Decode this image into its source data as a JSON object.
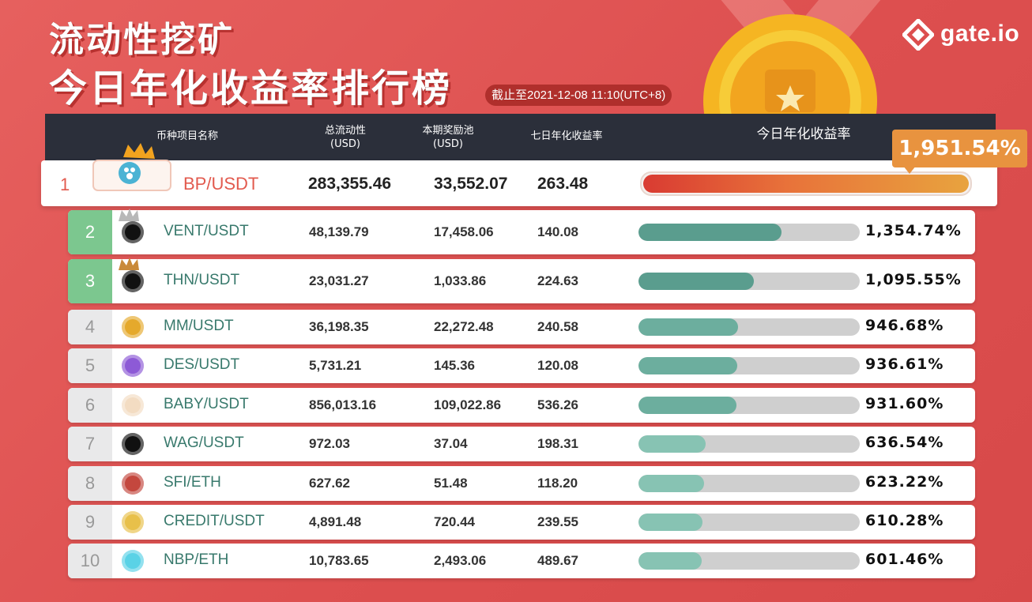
{
  "title_line1": "流动性挖矿",
  "title_line2": "今日年化收益率排行榜",
  "as_of": "截止至2021-12-08 11:10(UTC+8)",
  "brand": "gate.io",
  "headers": {
    "pair": "币种项目名称",
    "total_liquidity": "总流动性\n(USD)",
    "reward_pool": "本期奖励池\n(USD)",
    "apy_7d": "七日年化收益率",
    "apy_today": "今日年化收益率"
  },
  "colors": {
    "top_green": "#5a9d8e",
    "mid_green": "#6cae9e",
    "light_green": "#87c3b3",
    "top_bar": "#e8733a",
    "callout": "#e8933f"
  },
  "chart_data": {
    "type": "bar",
    "orientation": "horizontal",
    "title": "今日年化收益率排行榜",
    "categories": [
      "BP/USDT",
      "VENT/USDT",
      "THN/USDT",
      "MM/USDT",
      "DES/USDT",
      "BABY/USDT",
      "WAG/USDT",
      "SFI/ETH",
      "CREDIT/USDT",
      "NBP/ETH"
    ],
    "series": [
      {
        "name": "今日年化收益率",
        "values": [
          1951.54,
          1354.74,
          1095.55,
          946.68,
          936.61,
          931.6,
          636.54,
          623.22,
          610.28,
          601.46
        ]
      }
    ]
  },
  "rows": [
    {
      "rank": "1",
      "pair": "BP/USDT",
      "liquidity": "283,355.46",
      "pool": "33,552.07",
      "apy7": "263.48",
      "apy": "1,951.54%",
      "value": 1951.54
    },
    {
      "rank": "2",
      "pair": "VENT/USDT",
      "liquidity": "48,139.79",
      "pool": "17,458.06",
      "apy7": "140.08",
      "apy": "1,354.74%",
      "value": 1354.74,
      "icon_color": "#111111",
      "icon": "vent-icon"
    },
    {
      "rank": "3",
      "pair": "THN/USDT",
      "liquidity": "23,031.27",
      "pool": "1,033.86",
      "apy7": "224.63",
      "apy": "1,095.55%",
      "value": 1095.55,
      "icon_color": "#111111",
      "icon": "thn-icon"
    },
    {
      "rank": "4",
      "pair": "MM/USDT",
      "liquidity": "36,198.35",
      "pool": "22,272.48",
      "apy7": "240.58",
      "apy": "946.68%",
      "value": 946.68,
      "icon_color": "#e5a92c",
      "icon": "mm-icon"
    },
    {
      "rank": "5",
      "pair": "DES/USDT",
      "liquidity": "5,731.21",
      "pool": "145.36",
      "apy7": "120.08",
      "apy": "936.61%",
      "value": 936.61,
      "icon_color": "#8d5ad6",
      "icon": "des-icon"
    },
    {
      "rank": "6",
      "pair": "BABY/USDT",
      "liquidity": "856,013.16",
      "pool": "109,022.86",
      "apy7": "536.26",
      "apy": "931.60%",
      "value": 931.6,
      "icon_color": "#f3dcc2",
      "icon": "baby-icon"
    },
    {
      "rank": "7",
      "pair": "WAG/USDT",
      "liquidity": "972.03",
      "pool": "37.04",
      "apy7": "198.31",
      "apy": "636.54%",
      "value": 636.54,
      "icon_color": "#111111",
      "icon": "wag-icon"
    },
    {
      "rank": "8",
      "pair": "SFI/ETH",
      "liquidity": "627.62",
      "pool": "51.48",
      "apy7": "118.20",
      "apy": "623.22%",
      "value": 623.22,
      "icon_color": "#c4473e",
      "icon": "sfi-icon"
    },
    {
      "rank": "9",
      "pair": "CREDIT/USDT",
      "liquidity": "4,891.48",
      "pool": "720.44",
      "apy7": "239.55",
      "apy": "610.28%",
      "value": 610.28,
      "icon_color": "#e8c04a",
      "icon": "credit-icon"
    },
    {
      "rank": "10",
      "pair": "NBP/ETH",
      "liquidity": "10,783.65",
      "pool": "2,493.06",
      "apy7": "489.67",
      "apy": "601.46%",
      "value": 601.46,
      "icon_color": "#5ad2e6",
      "icon": "nbp-icon"
    }
  ]
}
